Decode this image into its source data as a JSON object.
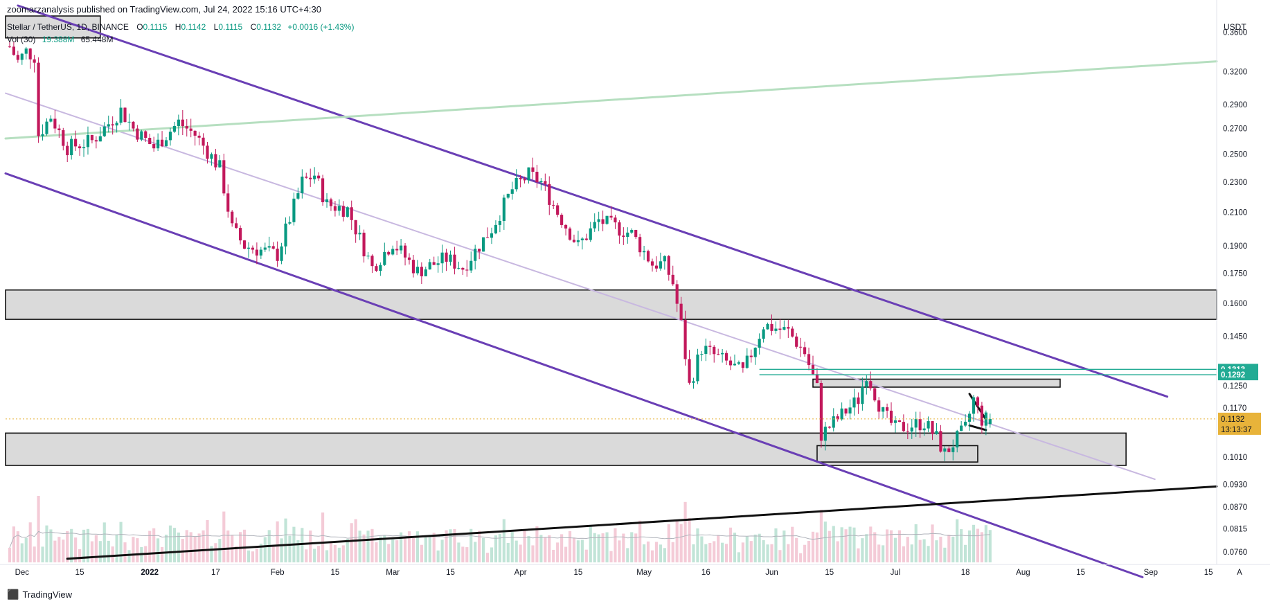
{
  "header": {
    "publisher_line": "zoomarzanalysis published on TradingView.com, Jul 24, 2022 15:16 UTC+4:30"
  },
  "symbol": {
    "name": "Stellar / TetherUS, 1D, BINANCE",
    "o_label": "O",
    "o": "0.1115",
    "h_label": "H",
    "h": "0.1142",
    "l_label": "L",
    "l": "0.1115",
    "c_label": "C",
    "c": "0.1132",
    "change": "+0.0016 (+1.43%)"
  },
  "volume": {
    "label": "Vol (30)",
    "value": "19.388M",
    "ma": "65.448M"
  },
  "currency": "USDT",
  "footer": {
    "brand": "TradingView"
  },
  "colors": {
    "up": "#089981",
    "down": "#c2185b",
    "channel": "#6a3fb5",
    "channel_mid": "#c8b8e0",
    "green_trend": "#b6dfc0",
    "zone_fill": "#d6d6d6",
    "level": "#22ab94",
    "price_tag": "#e8b33a"
  },
  "chart_data": {
    "type": "candlestick",
    "scale": "log",
    "ylim": [
      0.074,
      0.39
    ],
    "x_range": [
      "2021-11-27",
      "2022-09-17"
    ],
    "price_ticks": [
      "0.3600",
      "0.3200",
      "0.2900",
      "0.2700",
      "0.2500",
      "0.2300",
      "0.2100",
      "0.1900",
      "0.1750",
      "0.1600",
      "0.1450",
      "0.1250",
      "0.1170",
      "0.1010",
      "0.0930",
      "0.0870",
      "0.0815",
      "0.0760"
    ],
    "date_ticks": [
      {
        "date": "2021-12-01",
        "label": "Dec"
      },
      {
        "date": "2021-12-15",
        "label": "15"
      },
      {
        "date": "2022-01-01",
        "label": "2022"
      },
      {
        "date": "2022-01-17",
        "label": "17"
      },
      {
        "date": "2022-02-01",
        "label": "Feb"
      },
      {
        "date": "2022-02-15",
        "label": "15"
      },
      {
        "date": "2022-03-01",
        "label": "Mar"
      },
      {
        "date": "2022-03-15",
        "label": "15"
      },
      {
        "date": "2022-04-01",
        "label": "Apr"
      },
      {
        "date": "2022-04-15",
        "label": "15"
      },
      {
        "date": "2022-05-01",
        "label": "May"
      },
      {
        "date": "2022-05-16",
        "label": "16"
      },
      {
        "date": "2022-06-01",
        "label": "Jun"
      },
      {
        "date": "2022-06-15",
        "label": "15"
      },
      {
        "date": "2022-07-01",
        "label": "Jul"
      },
      {
        "date": "2022-07-18",
        "label": "18"
      },
      {
        "date": "2022-08-01",
        "label": "Aug"
      },
      {
        "date": "2022-08-15",
        "label": "15"
      },
      {
        "date": "2022-09-01",
        "label": "Sep"
      },
      {
        "date": "2022-09-15",
        "label": "15"
      }
    ],
    "last_date": "2022-07-24",
    "first_date": "2021-11-28",
    "anchors": [
      [
        "2021-11-28",
        0.345
      ],
      [
        "2021-11-30",
        0.33
      ],
      [
        "2021-12-02",
        0.34
      ],
      [
        "2021-12-04",
        0.335
      ],
      [
        "2021-12-05",
        0.265
      ],
      [
        "2021-12-08",
        0.28
      ],
      [
        "2021-12-12",
        0.255
      ],
      [
        "2021-12-18",
        0.26
      ],
      [
        "2021-12-25",
        0.285
      ],
      [
        "2021-12-28",
        0.27
      ],
      [
        "2022-01-02",
        0.255
      ],
      [
        "2022-01-08",
        0.275
      ],
      [
        "2022-01-12",
        0.265
      ],
      [
        "2022-01-18",
        0.24
      ],
      [
        "2022-01-21",
        0.2
      ],
      [
        "2022-01-24",
        0.19
      ],
      [
        "2022-02-01",
        0.185
      ],
      [
        "2022-02-07",
        0.23
      ],
      [
        "2022-02-10",
        0.235
      ],
      [
        "2022-02-13",
        0.215
      ],
      [
        "2022-02-18",
        0.212
      ],
      [
        "2022-02-24",
        0.178
      ],
      [
        "2022-03-01",
        0.192
      ],
      [
        "2022-03-07",
        0.176
      ],
      [
        "2022-03-14",
        0.183
      ],
      [
        "2022-03-18",
        0.178
      ],
      [
        "2022-03-25",
        0.2
      ],
      [
        "2022-03-30",
        0.225
      ],
      [
        "2022-04-03",
        0.235
      ],
      [
        "2022-04-06",
        0.23
      ],
      [
        "2022-04-10",
        0.21
      ],
      [
        "2022-04-15",
        0.19
      ],
      [
        "2022-04-20",
        0.205
      ],
      [
        "2022-04-28",
        0.197
      ],
      [
        "2022-05-03",
        0.18
      ],
      [
        "2022-05-06",
        0.18
      ],
      [
        "2022-05-08",
        0.17
      ],
      [
        "2022-05-10",
        0.15
      ],
      [
        "2022-05-12",
        0.125
      ],
      [
        "2022-05-15",
        0.14
      ],
      [
        "2022-05-20",
        0.135
      ],
      [
        "2022-05-25",
        0.13
      ],
      [
        "2022-05-30",
        0.15
      ],
      [
        "2022-06-05",
        0.147
      ],
      [
        "2022-06-09",
        0.138
      ],
      [
        "2022-06-12",
        0.124
      ],
      [
        "2022-06-13",
        0.108
      ],
      [
        "2022-06-16",
        0.112
      ],
      [
        "2022-06-22",
        0.12
      ],
      [
        "2022-06-24",
        0.13
      ],
      [
        "2022-06-28",
        0.115
      ],
      [
        "2022-07-01",
        0.11
      ],
      [
        "2022-07-08",
        0.112
      ],
      [
        "2022-07-11",
        0.107
      ],
      [
        "2022-07-13",
        0.102
      ],
      [
        "2022-07-18",
        0.11
      ],
      [
        "2022-07-20",
        0.12
      ],
      [
        "2022-07-22",
        0.113
      ],
      [
        "2022-07-24",
        0.1132
      ]
    ],
    "horizontal_levels": [
      0.1313,
      0.1292
    ],
    "current_price": "0.1132",
    "countdown": "13:13:37",
    "level_labels": [
      "0.1313",
      "0.1292"
    ],
    "zones": [
      {
        "from": "2021-11-27",
        "to": "2021-12-20",
        "low": 0.354,
        "high": 0.378
      },
      {
        "from": "2021-11-27",
        "to": "2022-09-17",
        "low": 0.1525,
        "high": 0.1665
      },
      {
        "from": "2021-11-27",
        "to": "2022-08-26",
        "low": 0.0985,
        "high": 0.1085
      },
      {
        "from": "2022-06-11",
        "to": "2022-08-10",
        "low": 0.1245,
        "high": 0.1275
      },
      {
        "from": "2022-06-12",
        "to": "2022-07-21",
        "low": 0.0995,
        "high": 0.1045
      }
    ],
    "trendlines": [
      {
        "name": "channel-upper",
        "from": [
          "2021-11-30",
          0.39
        ],
        "to": [
          "2022-09-05",
          0.121
        ],
        "color": "channel",
        "width": 3
      },
      {
        "name": "channel-lower",
        "from": [
          "2021-11-27",
          0.236
        ],
        "to": [
          "2022-08-30",
          0.0705
        ],
        "color": "channel",
        "width": 3
      },
      {
        "name": "channel-middle",
        "from": [
          "2021-11-27",
          0.3
        ],
        "to": [
          "2022-09-02",
          0.0945
        ],
        "color": "channel_mid",
        "width": 2
      },
      {
        "name": "rising-green",
        "from": [
          "2021-11-27",
          0.262
        ],
        "to": [
          "2022-09-17",
          0.33
        ],
        "color": "green_trend",
        "width": 3
      },
      {
        "name": "rising-black",
        "from": [
          "2021-12-12",
          0.0745
        ],
        "to": [
          "2022-09-17",
          0.0925
        ],
        "color": "#111111",
        "width": 3
      },
      {
        "name": "wedge-top",
        "from": [
          "2022-07-19",
          0.122
        ],
        "to": [
          "2022-07-23",
          0.113
        ],
        "color": "#111111",
        "width": 3
      },
      {
        "name": "wedge-bottom",
        "from": [
          "2022-07-19",
          0.111
        ],
        "to": [
          "2022-07-23",
          0.1095
        ],
        "color": "#111111",
        "width": 3
      }
    ]
  }
}
